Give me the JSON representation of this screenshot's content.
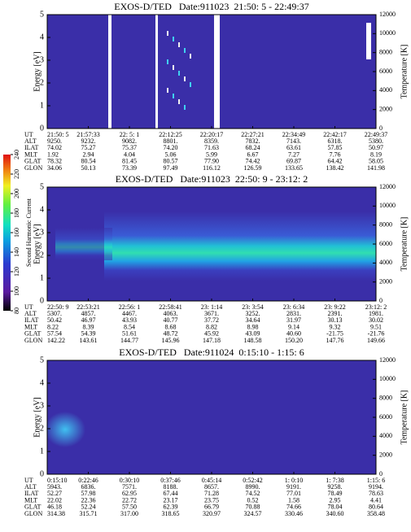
{
  "colorbar": {
    "label": "Second Harmonic Current",
    "lim": [
      80,
      240
    ],
    "ticks": [
      80,
      100,
      120,
      140,
      160,
      180,
      200,
      220,
      240
    ]
  },
  "panels": [
    {
      "title": "EXOS-D/TED   Date:911023  21:50: 5 - 22:49:37",
      "ylabel": "Energy [eV]",
      "ylim": [
        0,
        5
      ],
      "yticks": [
        0,
        1,
        2,
        3,
        4,
        5
      ],
      "y2label": "Temperature [K]",
      "y2lim": [
        0,
        12000
      ],
      "y2ticks": [
        0,
        2000,
        4000,
        6000,
        8000,
        10000,
        12000
      ],
      "ephemeris": [
        {
          "label": "UT",
          "values": [
            "21:50: 5",
            "21:57:33",
            "22: 5: 1",
            "22:12:25",
            "22:20:17",
            "22:27:21",
            "22:34:49",
            "22:42:17",
            "22:49:37"
          ]
        },
        {
          "label": "ALT",
          "values": [
            "9250.",
            "9232.",
            "9082.",
            "8801.",
            "8359.",
            "7832.",
            "7143.",
            "6318.",
            "5380."
          ]
        },
        {
          "label": "ILAT",
          "values": [
            "74.02",
            "75.27",
            "75.37",
            "74.20",
            "71.63",
            "68.24",
            "63.61",
            "57.85",
            "50.97"
          ]
        },
        {
          "label": "MLT",
          "values": [
            "1.92",
            "2.94",
            "4.04",
            "5.06",
            "5.99",
            "6.67",
            "7.27",
            "7.76",
            "8.19"
          ]
        },
        {
          "label": "GLAT",
          "values": [
            "78.32",
            "80.54",
            "81.45",
            "80.57",
            "77.90",
            "74.42",
            "69.87",
            "64.42",
            "58.05"
          ]
        },
        {
          "label": "GLON",
          "values": [
            "34.06",
            "50.13",
            "73.39",
            "97.49",
            "116.12",
            "126.59",
            "133.65",
            "138.42",
            "141.98"
          ]
        }
      ]
    },
    {
      "title": "EXOS-D/TED   Date:911023  22:50: 9 - 23:12: 2",
      "ylabel": "Energy [eV]",
      "ylim": [
        0,
        5
      ],
      "yticks": [
        0,
        1,
        2,
        3,
        4,
        5
      ],
      "y2label": "Temperature [K]",
      "y2lim": [
        0,
        12000
      ],
      "y2ticks": [
        0,
        2000,
        4000,
        6000,
        8000,
        10000,
        12000
      ],
      "ephemeris": [
        {
          "label": "UT",
          "values": [
            "22:50: 9",
            "22:53:21",
            "22:56: 1",
            "22:58:41",
            "23: 1:14",
            "23: 3:54",
            "23: 6:34",
            "23: 9:22",
            "23:12: 2"
          ]
        },
        {
          "label": "ALT",
          "values": [
            "5307.",
            "4857.",
            "4467.",
            "4063.",
            "3671.",
            "3252.",
            "2831.",
            "2391.",
            "1981."
          ]
        },
        {
          "label": "ILAT",
          "values": [
            "50.42",
            "46.97",
            "43.93",
            "40.77",
            "37.72",
            "34.64",
            "31.97",
            "30.13",
            "30.02"
          ]
        },
        {
          "label": "MLT",
          "values": [
            "8.22",
            "8.39",
            "8.54",
            "8.68",
            "8.82",
            "8.98",
            "9.14",
            "9.32",
            "9.51"
          ]
        },
        {
          "label": "GLAT",
          "values": [
            "57.54",
            "54.39",
            "51.61",
            "48.72",
            "45.92",
            "43.09",
            "40.60",
            "-21.75",
            "-21.76"
          ]
        },
        {
          "label": "GLON",
          "values": [
            "142.22",
            "143.61",
            "144.77",
            "145.96",
            "147.18",
            "148.58",
            "150.20",
            "147.76",
            "149.66"
          ]
        }
      ]
    },
    {
      "title": "EXOS-D/TED   Date:911024  0:15:10 - 1:15: 6",
      "ylabel": "Energy [eV]",
      "ylim": [
        0,
        5
      ],
      "yticks": [
        0,
        1,
        2,
        3,
        4,
        5
      ],
      "y2label": "Temperature [K]",
      "y2lim": [
        0,
        12000
      ],
      "y2ticks": [
        0,
        2000,
        4000,
        6000,
        8000,
        10000,
        12000
      ],
      "ephemeris": [
        {
          "label": "UT",
          "values": [
            "0:15:10",
            "0:22:46",
            "0:30:10",
            "0:37:46",
            "0:45:14",
            "0:52:42",
            "1: 0:10",
            "1: 7:38",
            "1:15: 6"
          ]
        },
        {
          "label": "ALT",
          "values": [
            "5943.",
            "6836.",
            "7571.",
            "8188.",
            "8657.",
            "8990.",
            "9191.",
            "9258.",
            "9194."
          ]
        },
        {
          "label": "ILAT",
          "values": [
            "52.27",
            "57.98",
            "62.95",
            "67.44",
            "71.28",
            "74.52",
            "77.01",
            "78.49",
            "78.63"
          ]
        },
        {
          "label": "MLT",
          "values": [
            "22.02",
            "22.36",
            "22.72",
            "23.17",
            "23.75",
            "0.52",
            "1.58",
            "2.95",
            "4.41"
          ]
        },
        {
          "label": "GLAT",
          "values": [
            "46.18",
            "52.24",
            "57.50",
            "62.39",
            "66.79",
            "70.88",
            "74.66",
            "78.04",
            "80.64"
          ]
        },
        {
          "label": "GLON",
          "values": [
            "314.38",
            "315.71",
            "317.00",
            "318.65",
            "320.97",
            "324.57",
            "330.46",
            "340.60",
            "358.48"
          ]
        }
      ]
    }
  ]
}
